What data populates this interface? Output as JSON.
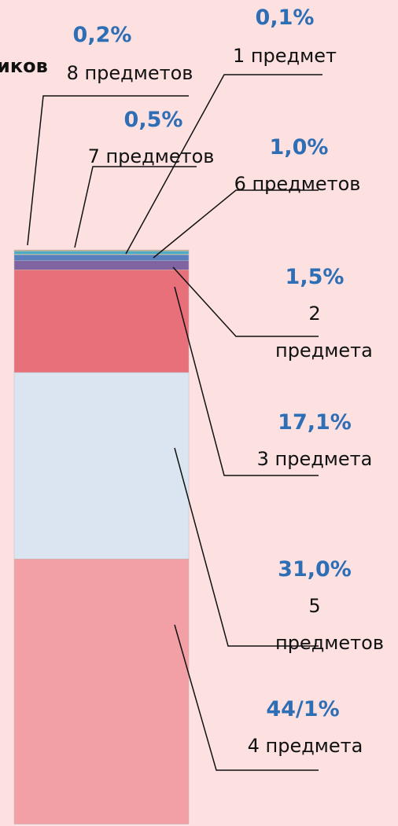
{
  "chart_data": {
    "type": "stacked-bar",
    "title": "иков",
    "series": [
      {
        "name": "8 предметов",
        "color": "#c8a47a",
        "values": [
          0.2
        ],
        "value_labels": [
          "0,2%"
        ]
      },
      {
        "name": "7 предметов",
        "color": "#4bacc6",
        "values": [
          0.5
        ],
        "value_labels": [
          "0,5%"
        ]
      },
      {
        "name": "1 предмет",
        "color": "#9bbb59",
        "values": [
          0.1
        ],
        "value_labels": [
          "0,1%"
        ]
      },
      {
        "name": "6 предметов",
        "color": "#5a7fbf",
        "values": [
          1.0
        ],
        "value_labels": [
          "1,0%"
        ]
      },
      {
        "name": "2 предмета",
        "color": "#8064a2",
        "values": [
          1.5
        ],
        "value_labels": [
          "1,5%"
        ]
      },
      {
        "name": "3 предмета",
        "color": "#e8707a",
        "values": [
          17.1
        ],
        "value_labels": [
          "17,1%"
        ]
      },
      {
        "name": "5 предметов",
        "color": "#dbe5f1",
        "values": [
          31.0
        ],
        "value_labels": [
          "31,0%"
        ]
      },
      {
        "name": "4 предмета",
        "color": "#f2a0a6",
        "values": [
          44.1
        ],
        "value_labels": [
          "44/1%"
        ]
      }
    ]
  }
}
